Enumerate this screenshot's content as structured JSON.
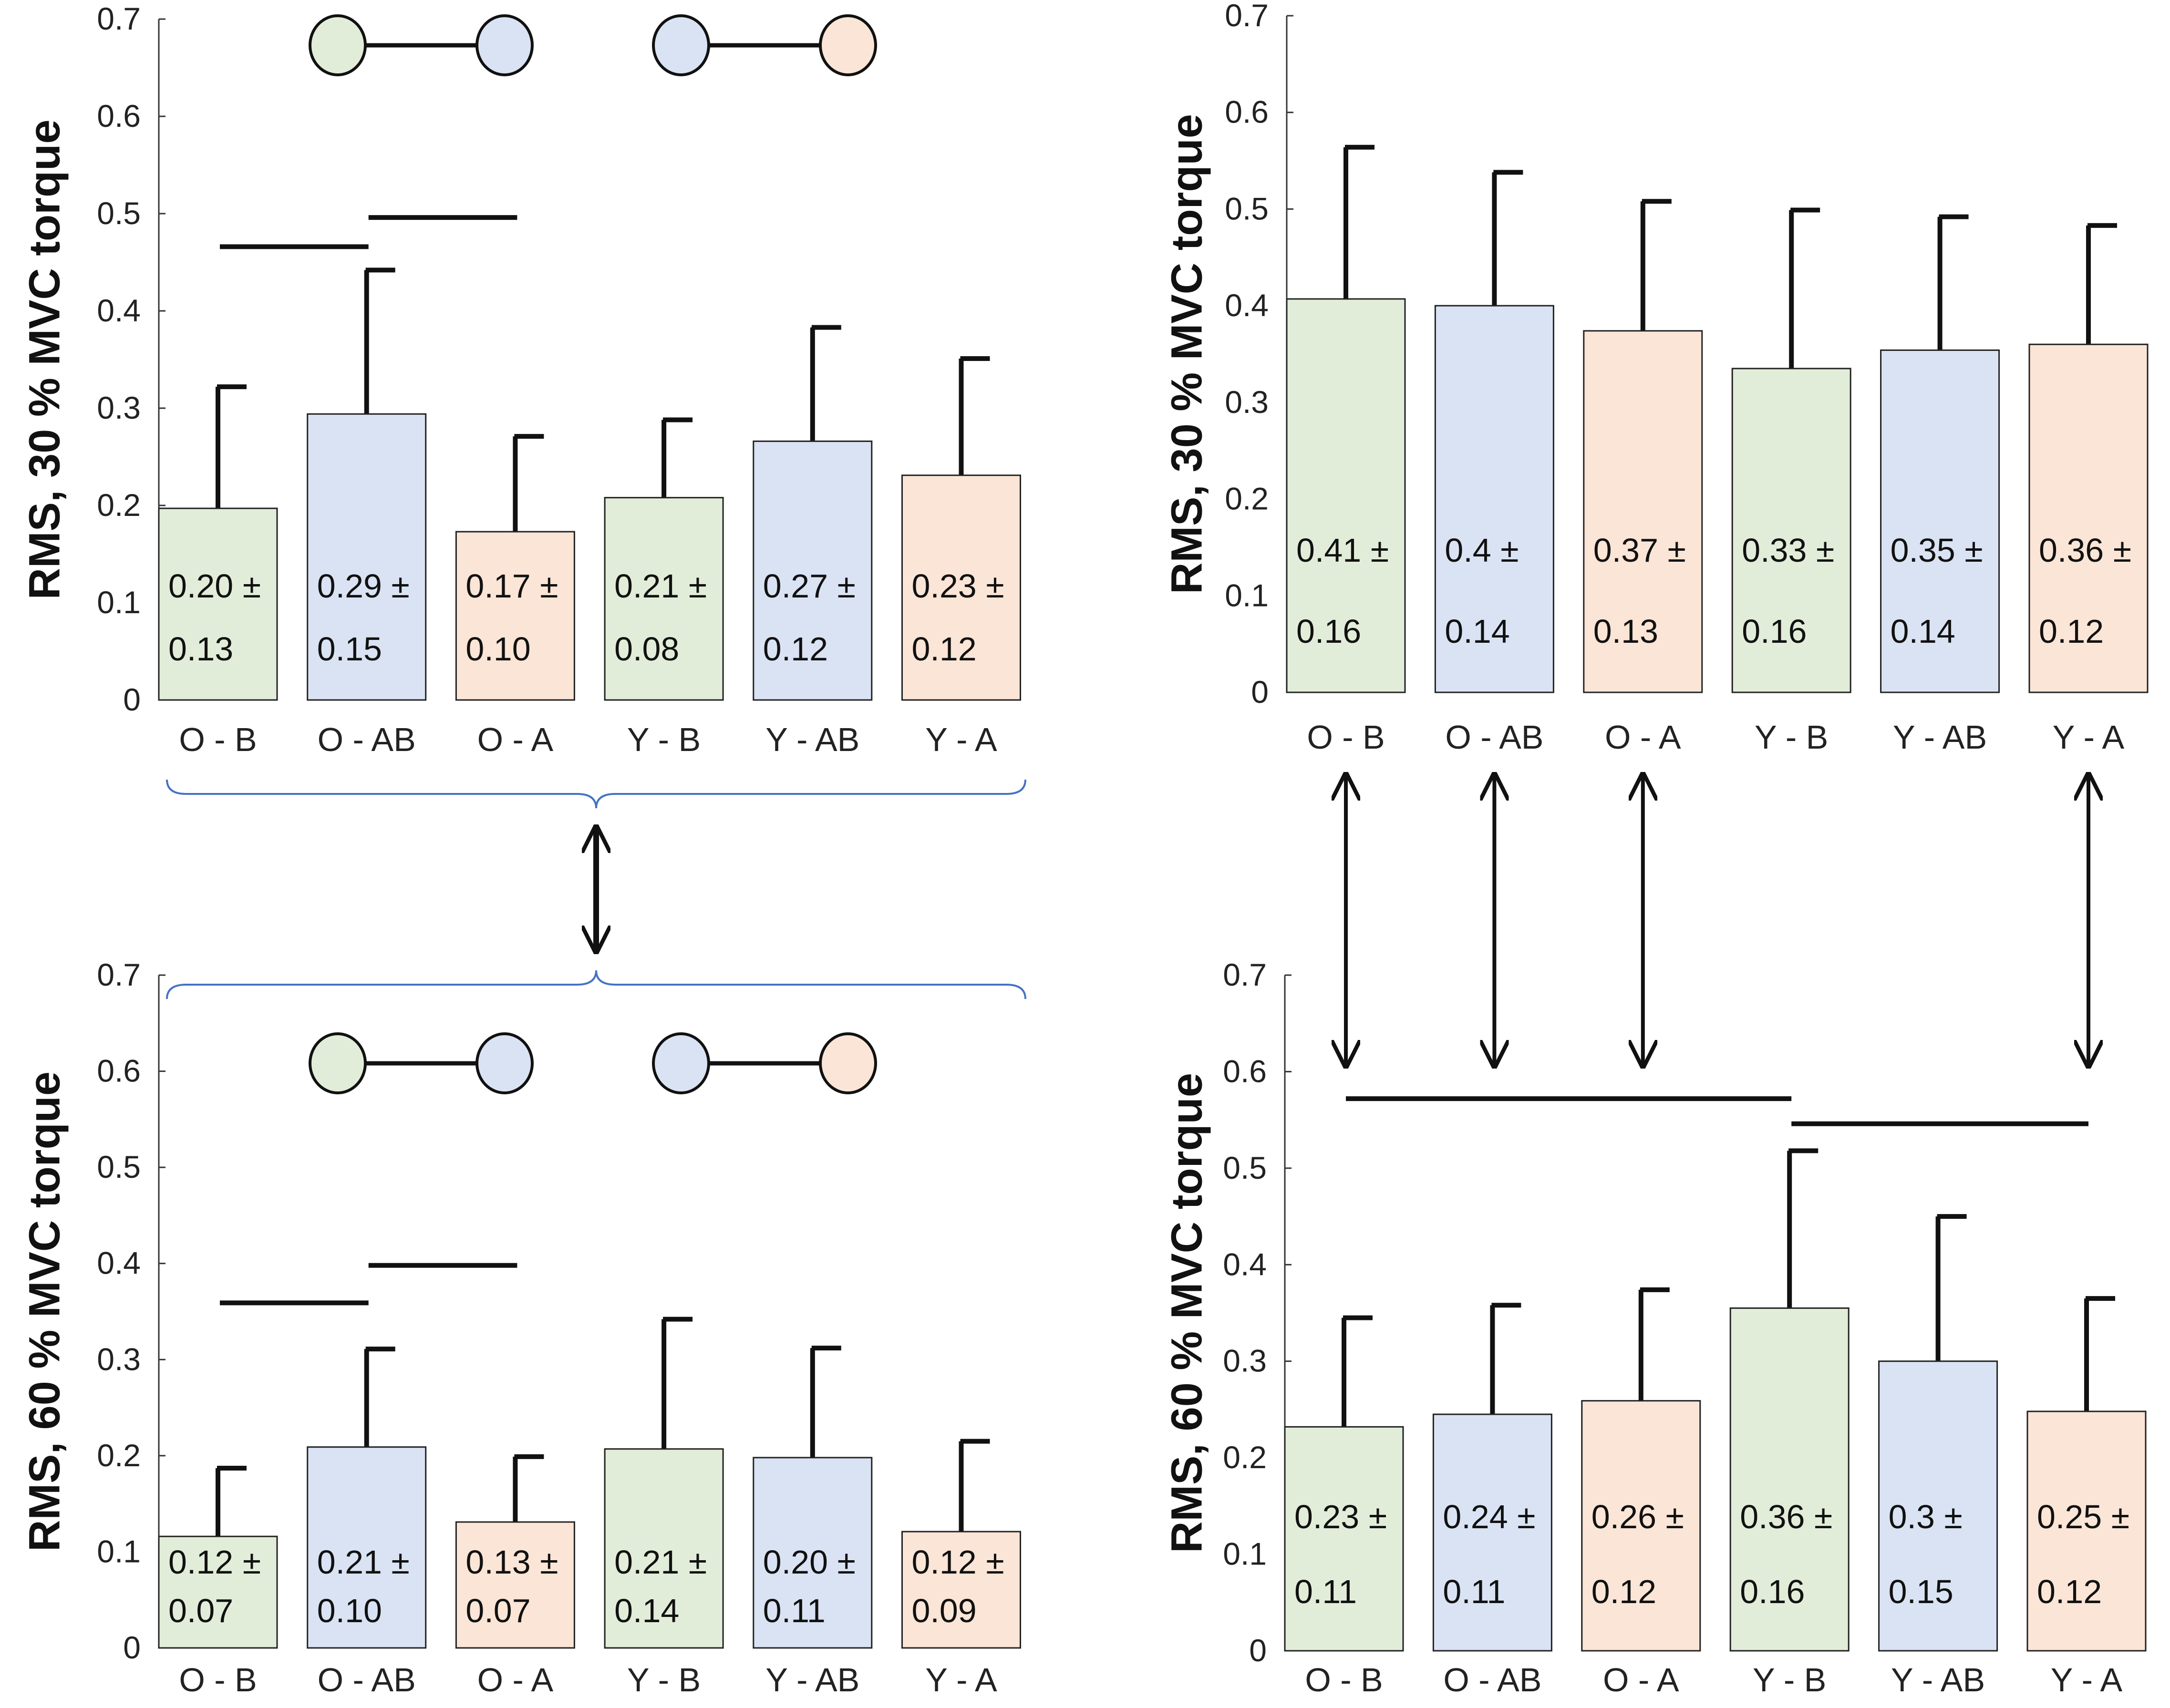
{
  "colors": {
    "B": "#e2edd9",
    "AB": "#dae3f3",
    "A": "#fbe5d6",
    "bar_stroke": "#222222",
    "brace": "#4472c4",
    "line": "#111111"
  },
  "chart_data": [
    {
      "id": "top-left",
      "type": "bar",
      "ylabel": "RMS, 30 % MVC torque",
      "ylim": [
        0,
        0.7
      ],
      "yticks": [
        "0",
        "0.1",
        "0.2",
        "0.3",
        "0.4",
        "0.5",
        "0.6",
        "0.7"
      ],
      "categories": [
        "O - B",
        "O - AB",
        "O - A",
        "Y - B",
        "Y - AB",
        "Y - A"
      ],
      "groups": [
        "B",
        "AB",
        "A",
        "B",
        "AB",
        "A"
      ],
      "values": [
        0.197,
        0.294,
        0.173,
        0.208,
        0.266,
        0.231
      ],
      "errors": [
        0.125,
        0.148,
        0.098,
        0.08,
        0.117,
        0.12
      ],
      "value_labels": [
        "0.20 ±",
        "0.29 ±",
        "0.17 ±",
        "0.21 ±",
        "0.27 ±",
        "0.23 ±"
      ],
      "sd_labels": [
        "0.13",
        "0.15",
        "0.10",
        "0.08",
        "0.12",
        "0.12"
      ],
      "significance_lines": [
        {
          "from": 0,
          "to": 1,
          "y": 0.466
        },
        {
          "from": 1,
          "to": 2,
          "y": 0.496
        }
      ],
      "legend_pairs": [
        [
          "B",
          "AB"
        ],
        [
          "AB",
          "A"
        ]
      ]
    },
    {
      "id": "top-right",
      "type": "bar",
      "ylabel": "RMS, 30 % MVC torque",
      "ylim": [
        0,
        0.7
      ],
      "yticks": [
        "0",
        "0.1",
        "0.2",
        "0.3",
        "0.4",
        "0.5",
        "0.6",
        "0.7"
      ],
      "categories": [
        "O - B",
        "O - AB",
        "O - A",
        "Y - B",
        "Y - AB",
        "Y - A"
      ],
      "groups": [
        "B",
        "AB",
        "A",
        "B",
        "AB",
        "A"
      ],
      "values": [
        0.407,
        0.4,
        0.374,
        0.335,
        0.354,
        0.36
      ],
      "errors": [
        0.157,
        0.138,
        0.134,
        0.164,
        0.138,
        0.123
      ],
      "value_labels": [
        "0.41 ±",
        "0.4 ±",
        "0.37 ±",
        "0.33 ±",
        "0.35 ±",
        "0.36 ±"
      ],
      "sd_labels": [
        "0.16",
        "0.14",
        "0.13",
        "0.16",
        "0.14",
        "0.12"
      ],
      "significance_lines": [],
      "legend_pairs": []
    },
    {
      "id": "bottom-left",
      "type": "bar",
      "ylabel": "RMS, 60 % MVC torque",
      "ylim": [
        0,
        0.7
      ],
      "yticks": [
        "0",
        "0.1",
        "0.2",
        "0.3",
        "0.4",
        "0.5",
        "0.6",
        "0.7"
      ],
      "categories": [
        "O - B",
        "O - AB",
        "O - A",
        "Y - B",
        "Y - AB",
        "Y - A"
      ],
      "groups": [
        "B",
        "AB",
        "A",
        "B",
        "AB",
        "A"
      ],
      "values": [
        0.116,
        0.209,
        0.131,
        0.207,
        0.198,
        0.121
      ],
      "errors": [
        0.071,
        0.102,
        0.068,
        0.135,
        0.114,
        0.094
      ],
      "value_labels": [
        "0.12 ±",
        "0.21 ±",
        "0.13 ±",
        "0.21 ±",
        "0.20 ±",
        "0.12 ±"
      ],
      "sd_labels": [
        "0.07",
        "0.10",
        "0.07",
        "0.14",
        "0.11",
        "0.09"
      ],
      "significance_lines": [
        {
          "from": 0,
          "to": 1,
          "y": 0.359
        },
        {
          "from": 1,
          "to": 2,
          "y": 0.398
        }
      ],
      "legend_pairs": [
        [
          "B",
          "AB"
        ],
        [
          "AB",
          "A"
        ]
      ]
    },
    {
      "id": "bottom-right",
      "type": "bar",
      "ylabel": "RMS, 60 % MVC torque",
      "ylim": [
        0,
        0.7
      ],
      "yticks": [
        "0",
        "0.1",
        "0.2",
        "0.3",
        "0.4",
        "0.5",
        "0.6",
        "0.7"
      ],
      "categories": [
        "O - B",
        "O - AB",
        "O - A",
        "Y - B",
        "Y - AB",
        "Y - A"
      ],
      "groups": [
        "B",
        "AB",
        "A",
        "B",
        "AB",
        "A"
      ],
      "values": [
        0.232,
        0.245,
        0.259,
        0.355,
        0.3,
        0.248
      ],
      "errors": [
        0.113,
        0.113,
        0.115,
        0.163,
        0.15,
        0.117
      ],
      "value_labels": [
        "0.23 ±",
        "0.24 ±",
        "0.26 ±",
        "0.36 ±",
        "0.3 ±",
        "0.25 ±"
      ],
      "sd_labels": [
        "0.11",
        "0.11",
        "0.12",
        "0.16",
        "0.15",
        "0.12"
      ],
      "significance_lines": [
        {
          "from": 0,
          "to": 3,
          "y": 0.572
        },
        {
          "from": 3,
          "to": 5,
          "y": 0.546
        }
      ],
      "legend_pairs": []
    }
  ],
  "connections": [
    {
      "type": "brace-arrow",
      "from_panel": "top-left",
      "to_panel": "bottom-left"
    },
    {
      "type": "bar-arrows",
      "from_panel": "top-right",
      "to_panel": "bottom-right",
      "bars": [
        0,
        1,
        2,
        5
      ]
    }
  ]
}
